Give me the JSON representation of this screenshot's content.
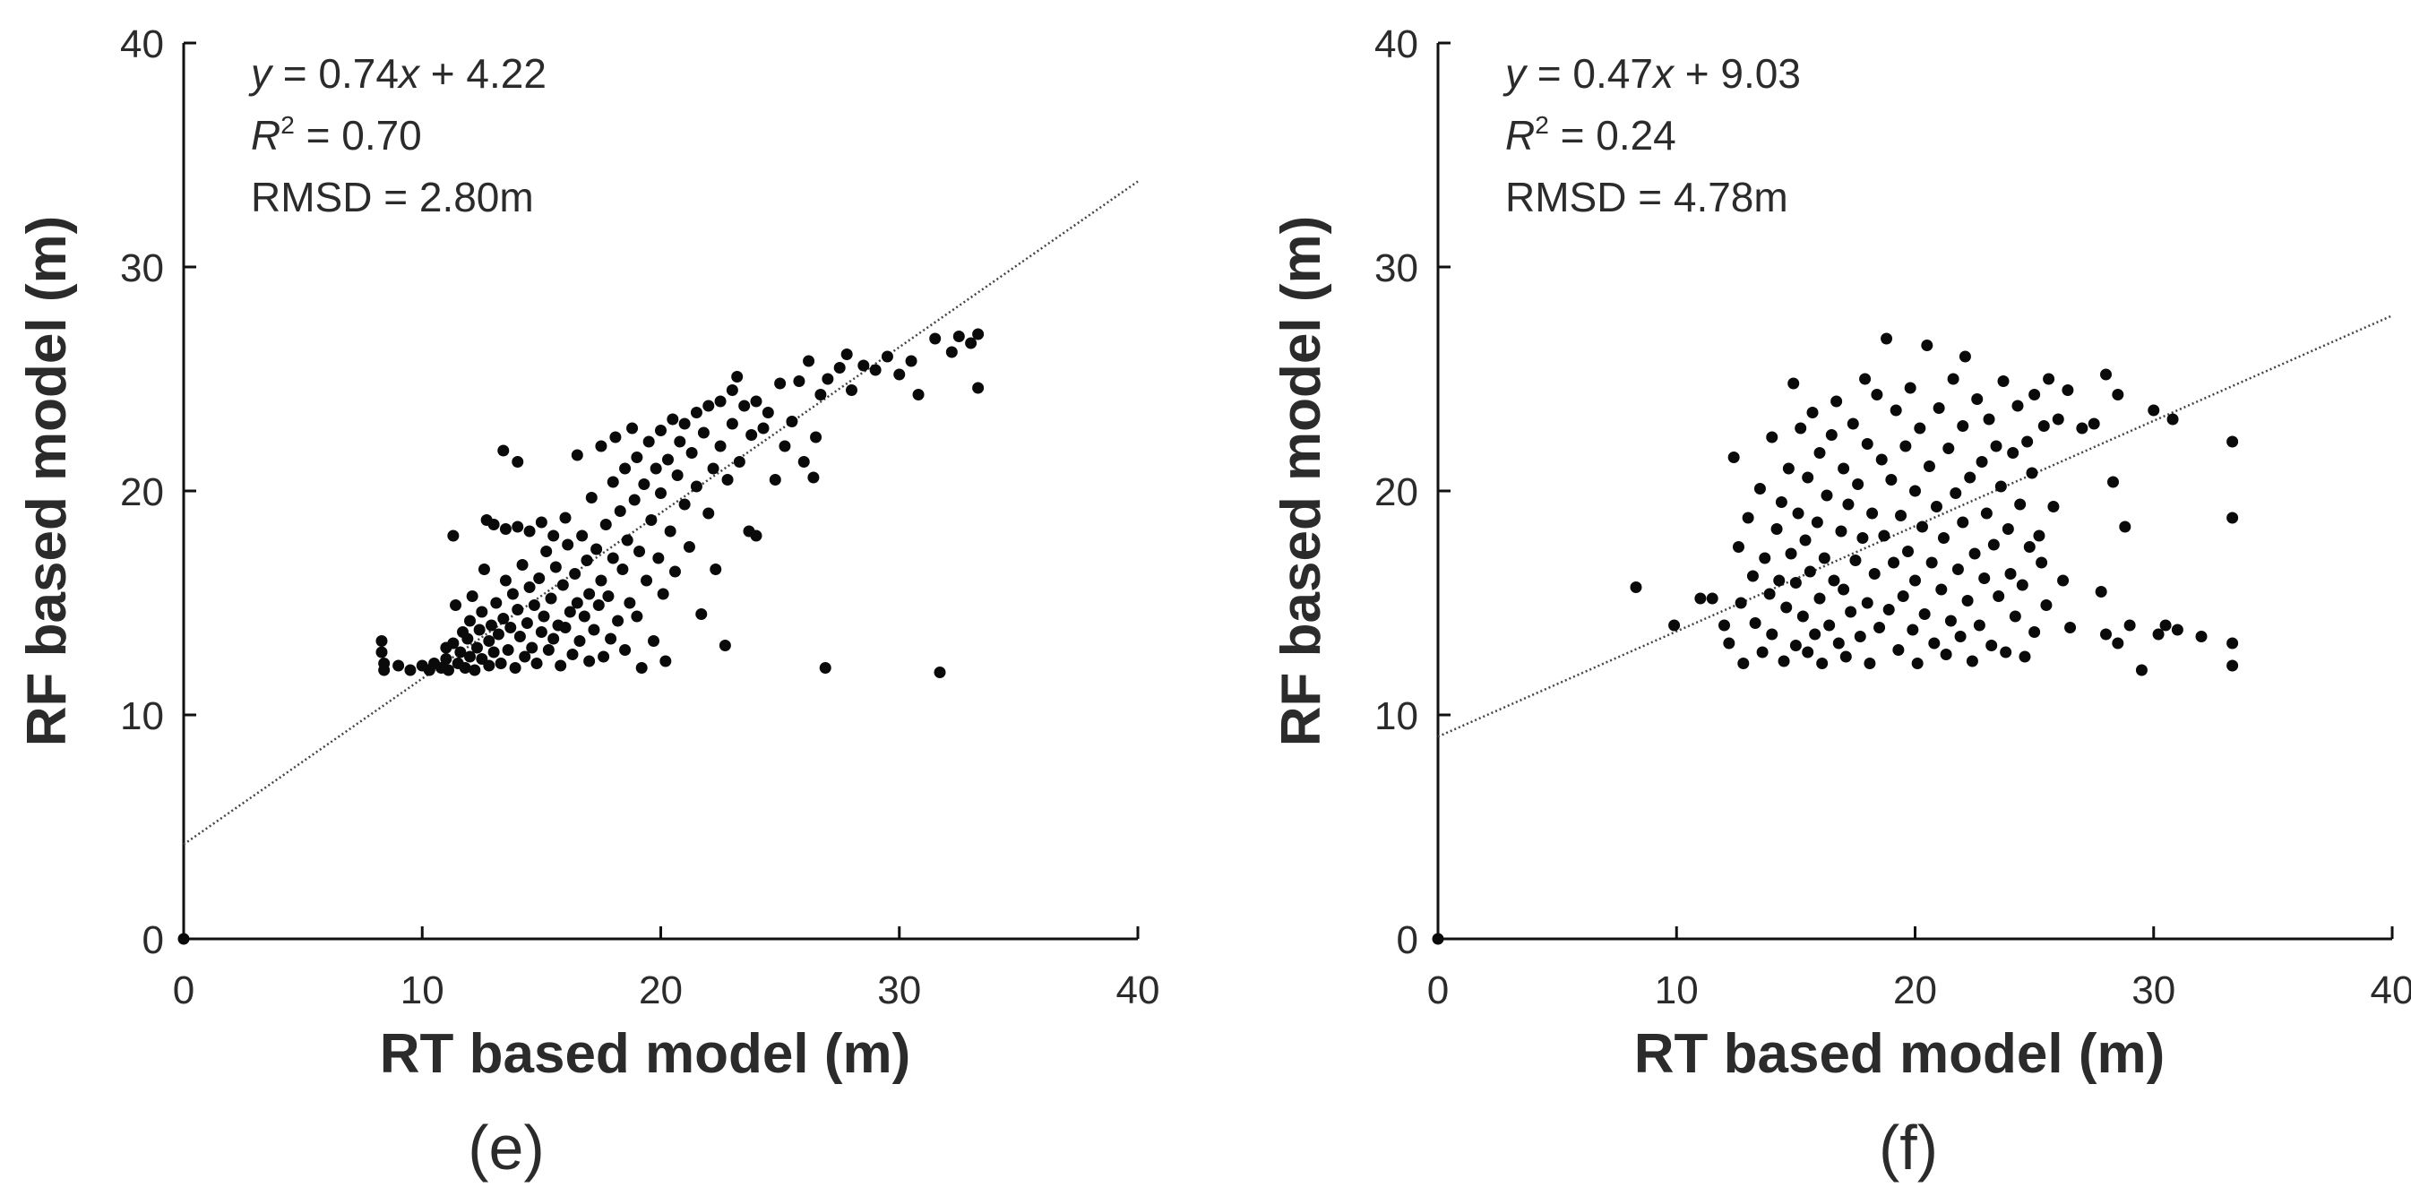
{
  "chart_data": [
    {
      "type": "scatter",
      "panel_label": "(e)",
      "xlabel": "RT based model (m)",
      "ylabel": "RF based model (m)",
      "xlim": [
        0,
        40
      ],
      "ylim": [
        0,
        40
      ],
      "xticks": [
        "0",
        "10",
        "20",
        "30",
        "40"
      ],
      "yticks": [
        "0",
        "10",
        "20",
        "30",
        "40"
      ],
      "fit": {
        "slope": 0.74,
        "intercept": 4.22
      },
      "annotations": {
        "equation_prefix": "y",
        "equation_mid": " = 0.74",
        "equation_var": "x",
        "equation_suffix": " + 4.22",
        "r2_label": "R",
        "r2_sup": "2",
        "r2_value": " = 0.70",
        "rmsd": "RMSD = 2.80m"
      },
      "points": [
        [
          8.3,
          13.3
        ],
        [
          8.3,
          12.8
        ],
        [
          8.4,
          12.0
        ],
        [
          8.4,
          12.3
        ],
        [
          9.0,
          12.2
        ],
        [
          9.5,
          12.0
        ],
        [
          10.0,
          12.2
        ],
        [
          10.3,
          12.0
        ],
        [
          10.5,
          12.3
        ],
        [
          10.8,
          12.1
        ],
        [
          11.0,
          12.5
        ],
        [
          11.0,
          13.0
        ],
        [
          11.1,
          12.0
        ],
        [
          11.3,
          13.2
        ],
        [
          11.3,
          18.0
        ],
        [
          11.4,
          14.9
        ],
        [
          11.5,
          12.3
        ],
        [
          11.6,
          12.8
        ],
        [
          11.7,
          13.7
        ],
        [
          11.8,
          12.1
        ],
        [
          11.9,
          13.4
        ],
        [
          12.0,
          12.6
        ],
        [
          12.0,
          14.2
        ],
        [
          12.1,
          15.3
        ],
        [
          12.2,
          12.0
        ],
        [
          12.3,
          13.0
        ],
        [
          12.4,
          13.8
        ],
        [
          12.5,
          12.5
        ],
        [
          12.5,
          14.6
        ],
        [
          12.6,
          16.5
        ],
        [
          12.7,
          18.7
        ],
        [
          12.8,
          12.2
        ],
        [
          12.8,
          13.3
        ],
        [
          12.9,
          14.0
        ],
        [
          13.0,
          18.5
        ],
        [
          13.0,
          12.8
        ],
        [
          13.1,
          15.0
        ],
        [
          13.2,
          13.6
        ],
        [
          13.3,
          12.3
        ],
        [
          13.4,
          21.8
        ],
        [
          13.4,
          14.3
        ],
        [
          13.5,
          16.0
        ],
        [
          13.5,
          18.3
        ],
        [
          13.6,
          12.9
        ],
        [
          13.7,
          13.9
        ],
        [
          13.8,
          15.4
        ],
        [
          13.9,
          12.1
        ],
        [
          14.0,
          14.7
        ],
        [
          14.0,
          21.3
        ],
        [
          14.0,
          18.4
        ],
        [
          14.1,
          13.5
        ],
        [
          14.2,
          16.7
        ],
        [
          14.3,
          12.6
        ],
        [
          14.4,
          14.1
        ],
        [
          14.5,
          15.7
        ],
        [
          14.5,
          18.2
        ],
        [
          14.6,
          13.0
        ],
        [
          14.7,
          14.9
        ],
        [
          14.8,
          12.3
        ],
        [
          14.9,
          16.1
        ],
        [
          15.0,
          13.7
        ],
        [
          15.0,
          18.6
        ],
        [
          15.1,
          14.4
        ],
        [
          15.2,
          17.3
        ],
        [
          15.3,
          12.9
        ],
        [
          15.4,
          15.2
        ],
        [
          15.5,
          13.4
        ],
        [
          15.5,
          18.0
        ],
        [
          15.6,
          16.6
        ],
        [
          15.7,
          14.0
        ],
        [
          15.8,
          12.2
        ],
        [
          15.9,
          15.8
        ],
        [
          16.0,
          13.9
        ],
        [
          16.0,
          18.8
        ],
        [
          16.1,
          17.6
        ],
        [
          16.2,
          14.6
        ],
        [
          16.3,
          12.7
        ],
        [
          16.4,
          16.3
        ],
        [
          16.5,
          15.0
        ],
        [
          16.5,
          21.6
        ],
        [
          16.6,
          13.3
        ],
        [
          16.7,
          18.0
        ],
        [
          16.8,
          14.4
        ],
        [
          16.9,
          16.9
        ],
        [
          17.0,
          12.4
        ],
        [
          17.0,
          15.4
        ],
        [
          17.1,
          19.7
        ],
        [
          17.2,
          13.8
        ],
        [
          17.3,
          17.4
        ],
        [
          17.4,
          14.9
        ],
        [
          17.5,
          22.0
        ],
        [
          17.5,
          16.0
        ],
        [
          17.6,
          12.6
        ],
        [
          17.7,
          18.5
        ],
        [
          17.8,
          15.3
        ],
        [
          17.9,
          13.4
        ],
        [
          18.0,
          20.4
        ],
        [
          18.0,
          17.0
        ],
        [
          18.1,
          22.4
        ],
        [
          18.2,
          14.2
        ],
        [
          18.3,
          19.1
        ],
        [
          18.4,
          16.5
        ],
        [
          18.5,
          21.0
        ],
        [
          18.5,
          12.9
        ],
        [
          18.6,
          17.8
        ],
        [
          18.7,
          15.0
        ],
        [
          18.8,
          22.8
        ],
        [
          18.9,
          19.6
        ],
        [
          19.0,
          14.4
        ],
        [
          19.0,
          21.5
        ],
        [
          19.1,
          17.3
        ],
        [
          19.2,
          12.1
        ],
        [
          19.3,
          20.3
        ],
        [
          19.4,
          16.0
        ],
        [
          19.5,
          22.2
        ],
        [
          19.6,
          18.7
        ],
        [
          19.7,
          13.3
        ],
        [
          19.8,
          21.0
        ],
        [
          19.9,
          17.0
        ],
        [
          20.0,
          19.9
        ],
        [
          20.0,
          22.7
        ],
        [
          20.1,
          15.4
        ],
        [
          20.2,
          12.4
        ],
        [
          20.3,
          21.4
        ],
        [
          20.4,
          18.2
        ],
        [
          20.5,
          23.2
        ],
        [
          20.6,
          16.4
        ],
        [
          20.7,
          20.7
        ],
        [
          20.8,
          22.2
        ],
        [
          21.0,
          19.4
        ],
        [
          21.0,
          23.0
        ],
        [
          21.2,
          17.5
        ],
        [
          21.3,
          21.7
        ],
        [
          21.5,
          23.5
        ],
        [
          21.5,
          20.2
        ],
        [
          21.7,
          14.5
        ],
        [
          21.8,
          22.6
        ],
        [
          22.0,
          19.0
        ],
        [
          22.0,
          23.8
        ],
        [
          22.2,
          21.0
        ],
        [
          22.3,
          16.5
        ],
        [
          22.5,
          24.0
        ],
        [
          22.5,
          22.0
        ],
        [
          22.7,
          13.1
        ],
        [
          22.8,
          20.5
        ],
        [
          23.0,
          24.5
        ],
        [
          23.0,
          23.0
        ],
        [
          23.2,
          25.1
        ],
        [
          23.3,
          21.3
        ],
        [
          23.5,
          23.8
        ],
        [
          23.7,
          18.2
        ],
        [
          23.8,
          22.5
        ],
        [
          24.0,
          24.0
        ],
        [
          24.0,
          18.0
        ],
        [
          24.3,
          22.8
        ],
        [
          24.5,
          23.5
        ],
        [
          24.8,
          20.5
        ],
        [
          25.0,
          24.8
        ],
        [
          25.2,
          22.0
        ],
        [
          25.5,
          23.1
        ],
        [
          25.8,
          24.9
        ],
        [
          26.0,
          21.3
        ],
        [
          26.2,
          25.8
        ],
        [
          26.4,
          20.6
        ],
        [
          26.5,
          22.4
        ],
        [
          26.7,
          24.3
        ],
        [
          26.9,
          12.1
        ],
        [
          27.0,
          25.0
        ],
        [
          27.5,
          25.5
        ],
        [
          27.8,
          26.1
        ],
        [
          28.0,
          24.5
        ],
        [
          28.5,
          25.6
        ],
        [
          29.0,
          25.4
        ],
        [
          29.5,
          26.0
        ],
        [
          30.0,
          25.2
        ],
        [
          30.5,
          25.8
        ],
        [
          30.8,
          24.3
        ],
        [
          31.5,
          26.8
        ],
        [
          31.7,
          11.9
        ],
        [
          32.2,
          26.2
        ],
        [
          32.5,
          26.9
        ],
        [
          33.0,
          26.6
        ],
        [
          33.3,
          27.0
        ],
        [
          33.3,
          24.6
        ],
        [
          0.0,
          0.0
        ]
      ]
    },
    {
      "type": "scatter",
      "panel_label": "(f)",
      "xlabel": "RT based model (m)",
      "ylabel": "RF based model (m)",
      "xlim": [
        0,
        40
      ],
      "ylim": [
        0,
        40
      ],
      "xticks": [
        "0",
        "10",
        "20",
        "30",
        "40"
      ],
      "yticks": [
        "0",
        "10",
        "20",
        "30",
        "40"
      ],
      "fit": {
        "slope": 0.47,
        "intercept": 9.03
      },
      "annotations": {
        "equation_prefix": "y",
        "equation_mid": " = 0.47",
        "equation_var": "x",
        "equation_suffix": " + 9.03",
        "r2_label": "R",
        "r2_sup": "2",
        "r2_value": " = 0.24",
        "rmsd": "RMSD = 4.78m"
      },
      "points": [
        [
          8.3,
          15.7
        ],
        [
          9.9,
          14.0
        ],
        [
          11.0,
          15.2
        ],
        [
          11.5,
          15.2
        ],
        [
          12.0,
          14.0
        ],
        [
          12.2,
          13.2
        ],
        [
          12.4,
          21.5
        ],
        [
          12.6,
          17.5
        ],
        [
          12.7,
          15.0
        ],
        [
          12.8,
          12.3
        ],
        [
          13.0,
          18.8
        ],
        [
          13.2,
          16.2
        ],
        [
          13.3,
          14.1
        ],
        [
          13.5,
          20.1
        ],
        [
          13.6,
          12.8
        ],
        [
          13.7,
          17.0
        ],
        [
          13.9,
          15.4
        ],
        [
          14.0,
          22.4
        ],
        [
          14.0,
          13.6
        ],
        [
          14.2,
          18.3
        ],
        [
          14.3,
          16.0
        ],
        [
          14.4,
          19.5
        ],
        [
          14.5,
          12.4
        ],
        [
          14.6,
          14.8
        ],
        [
          14.7,
          21.0
        ],
        [
          14.8,
          17.2
        ],
        [
          14.9,
          24.8
        ],
        [
          15.0,
          13.1
        ],
        [
          15.0,
          15.9
        ],
        [
          15.1,
          19.0
        ],
        [
          15.2,
          22.8
        ],
        [
          15.3,
          14.4
        ],
        [
          15.4,
          17.8
        ],
        [
          15.5,
          12.8
        ],
        [
          15.5,
          20.6
        ],
        [
          15.6,
          16.4
        ],
        [
          15.7,
          23.5
        ],
        [
          15.8,
          13.6
        ],
        [
          15.9,
          18.6
        ],
        [
          16.0,
          15.2
        ],
        [
          16.0,
          21.7
        ],
        [
          16.1,
          12.3
        ],
        [
          16.2,
          17.0
        ],
        [
          16.3,
          19.8
        ],
        [
          16.4,
          14.0
        ],
        [
          16.5,
          22.5
        ],
        [
          16.6,
          16.0
        ],
        [
          16.7,
          24.0
        ],
        [
          16.8,
          13.2
        ],
        [
          16.9,
          18.2
        ],
        [
          17.0,
          15.6
        ],
        [
          17.0,
          21.0
        ],
        [
          17.1,
          12.6
        ],
        [
          17.2,
          19.4
        ],
        [
          17.3,
          14.6
        ],
        [
          17.4,
          23.0
        ],
        [
          17.5,
          16.9
        ],
        [
          17.6,
          20.3
        ],
        [
          17.7,
          13.5
        ],
        [
          17.8,
          17.9
        ],
        [
          17.9,
          25.0
        ],
        [
          18.0,
          15.0
        ],
        [
          18.0,
          22.1
        ],
        [
          18.1,
          12.3
        ],
        [
          18.2,
          19.0
        ],
        [
          18.3,
          16.3
        ],
        [
          18.4,
          24.3
        ],
        [
          18.5,
          13.9
        ],
        [
          18.6,
          21.4
        ],
        [
          18.7,
          18.0
        ],
        [
          18.8,
          26.8
        ],
        [
          18.9,
          14.7
        ],
        [
          19.0,
          20.5
        ],
        [
          19.1,
          16.8
        ],
        [
          19.2,
          23.6
        ],
        [
          19.3,
          12.9
        ],
        [
          19.4,
          18.9
        ],
        [
          19.5,
          15.3
        ],
        [
          19.6,
          22.0
        ],
        [
          19.7,
          17.3
        ],
        [
          19.8,
          24.6
        ],
        [
          19.9,
          13.8
        ],
        [
          20.0,
          20.0
        ],
        [
          20.0,
          16.0
        ],
        [
          20.1,
          12.3
        ],
        [
          20.2,
          22.8
        ],
        [
          20.3,
          18.4
        ],
        [
          20.4,
          14.5
        ],
        [
          20.5,
          26.5
        ],
        [
          20.6,
          21.1
        ],
        [
          20.7,
          16.8
        ],
        [
          20.8,
          13.2
        ],
        [
          20.9,
          19.3
        ],
        [
          21.0,
          23.7
        ],
        [
          21.1,
          15.6
        ],
        [
          21.2,
          17.9
        ],
        [
          21.3,
          12.7
        ],
        [
          21.4,
          21.9
        ],
        [
          21.5,
          14.2
        ],
        [
          21.6,
          25.0
        ],
        [
          21.7,
          19.9
        ],
        [
          21.8,
          16.5
        ],
        [
          21.9,
          13.5
        ],
        [
          22.0,
          22.9
        ],
        [
          22.0,
          18.6
        ],
        [
          22.1,
          26.0
        ],
        [
          22.2,
          15.1
        ],
        [
          22.3,
          20.6
        ],
        [
          22.4,
          12.4
        ],
        [
          22.5,
          17.2
        ],
        [
          22.6,
          24.1
        ],
        [
          22.7,
          14.0
        ],
        [
          22.8,
          21.3
        ],
        [
          22.9,
          16.1
        ],
        [
          23.0,
          19.0
        ],
        [
          23.1,
          23.2
        ],
        [
          23.2,
          13.1
        ],
        [
          23.3,
          17.6
        ],
        [
          23.4,
          22.0
        ],
        [
          23.5,
          15.3
        ],
        [
          23.6,
          20.2
        ],
        [
          23.7,
          24.9
        ],
        [
          23.8,
          12.8
        ],
        [
          23.9,
          18.3
        ],
        [
          24.0,
          16.3
        ],
        [
          24.1,
          21.7
        ],
        [
          24.2,
          14.4
        ],
        [
          24.3,
          23.8
        ],
        [
          24.4,
          19.4
        ],
        [
          24.5,
          15.8
        ],
        [
          24.6,
          12.6
        ],
        [
          24.7,
          22.2
        ],
        [
          24.8,
          17.5
        ],
        [
          24.9,
          20.8
        ],
        [
          25.0,
          13.7
        ],
        [
          25.0,
          24.3
        ],
        [
          25.2,
          18.0
        ],
        [
          25.3,
          16.8
        ],
        [
          25.4,
          22.9
        ],
        [
          25.5,
          14.9
        ],
        [
          25.6,
          25.0
        ],
        [
          25.8,
          19.3
        ],
        [
          26.0,
          23.2
        ],
        [
          26.2,
          16.0
        ],
        [
          26.4,
          24.5
        ],
        [
          26.5,
          13.9
        ],
        [
          27.0,
          22.8
        ],
        [
          27.5,
          23.0
        ],
        [
          27.8,
          15.5
        ],
        [
          28.0,
          25.2
        ],
        [
          28.0,
          13.6
        ],
        [
          28.3,
          20.4
        ],
        [
          28.5,
          13.2
        ],
        [
          28.5,
          24.3
        ],
        [
          28.8,
          18.4
        ],
        [
          29.0,
          14.0
        ],
        [
          29.5,
          12.0
        ],
        [
          30.0,
          23.6
        ],
        [
          30.2,
          13.6
        ],
        [
          30.5,
          14.0
        ],
        [
          30.8,
          23.2
        ],
        [
          31.0,
          13.8
        ],
        [
          32.0,
          13.5
        ],
        [
          33.3,
          22.2
        ],
        [
          33.3,
          18.8
        ],
        [
          33.3,
          13.2
        ],
        [
          33.3,
          12.2
        ],
        [
          0.0,
          0.0
        ]
      ]
    }
  ]
}
